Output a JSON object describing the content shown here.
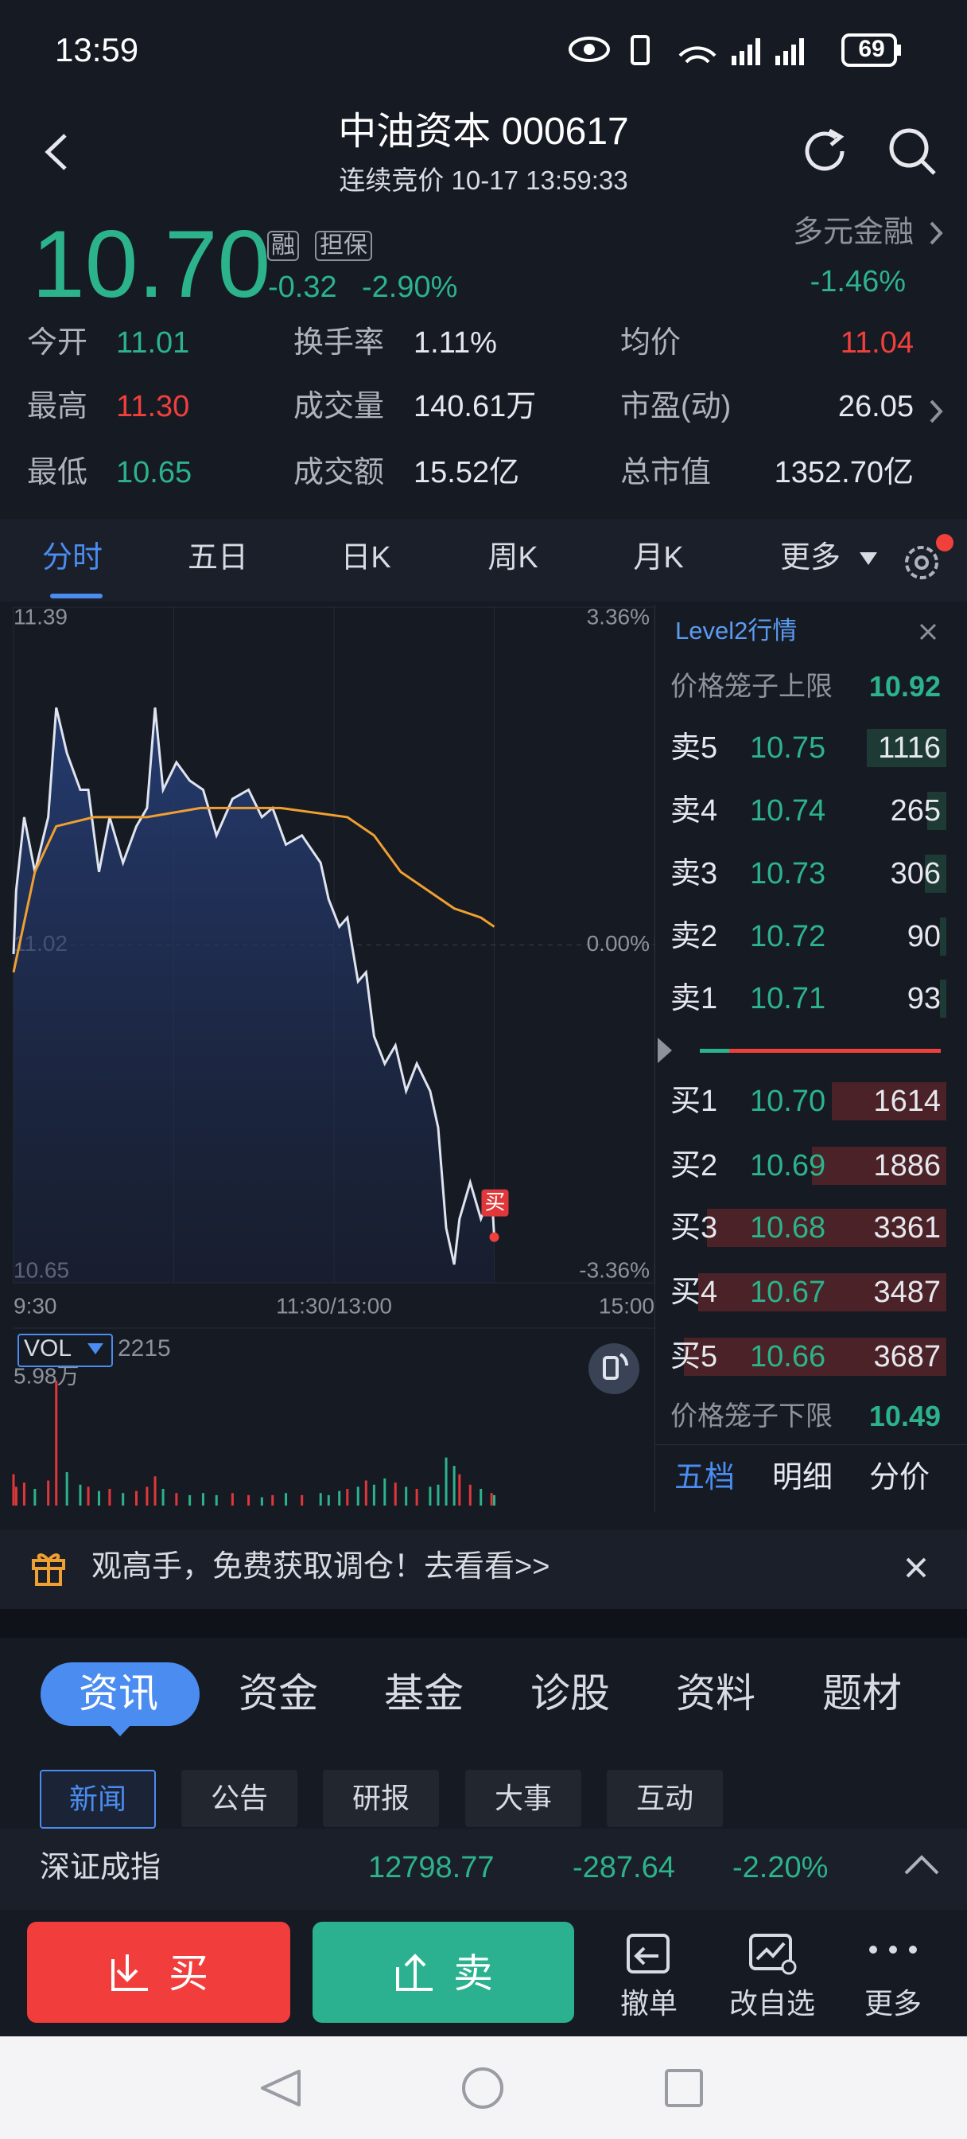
{
  "status_bar": {
    "time": "13:59",
    "battery": "69"
  },
  "header": {
    "title": "中油资本 000617",
    "subtitle": "连续竞价 10-17 13:59:33"
  },
  "quote": {
    "price": "10.70",
    "badges": [
      "融",
      "担保"
    ],
    "change": "-0.32",
    "change_pct": "-2.90%",
    "sector": "多元金融",
    "sector_change": "-1.46%"
  },
  "stats": [
    [
      {
        "label": "今开",
        "value": "11.01"
      },
      {
        "label": "换手率",
        "value": "1.11%"
      },
      {
        "label": "均价",
        "value": "11.04"
      }
    ],
    [
      {
        "label": "最高",
        "value": "11.30"
      },
      {
        "label": "成交量",
        "value": "140.61万"
      },
      {
        "label": "市盈(动)",
        "value": "26.05"
      }
    ],
    [
      {
        "label": "最低",
        "value": "10.65"
      },
      {
        "label": "成交额",
        "value": "15.52亿"
      },
      {
        "label": "总市值",
        "value": "1352.70亿"
      }
    ]
  ],
  "tabs": [
    "分时",
    "五日",
    "日K",
    "周K",
    "月K",
    "更多"
  ],
  "chart": {
    "yticks": [
      11.39,
      11.02,
      10.65
    ],
    "pct_ticks": [
      "3.36%",
      "0.00%",
      "-3.36%"
    ],
    "xlim": [
      0,
      240
    ],
    "xticks": [
      {
        "value": 0,
        "label": "9:30"
      },
      {
        "value": 120,
        "label": "11:30/13:00"
      },
      {
        "value": 240,
        "label": "15:00"
      }
    ],
    "minutes": [
      0,
      1,
      4,
      8,
      13,
      16,
      20,
      25,
      28,
      32,
      36,
      41,
      46,
      50,
      53,
      56,
      61,
      66,
      71,
      76,
      82,
      88,
      93,
      97,
      102,
      108,
      115,
      118,
      122,
      125,
      129,
      132,
      135,
      139,
      143,
      147,
      151,
      156,
      159,
      162,
      165,
      167,
      171,
      175,
      179,
      180
    ],
    "price": [
      11.01,
      11.08,
      11.16,
      11.1,
      11.16,
      11.28,
      11.23,
      11.19,
      11.19,
      11.1,
      11.16,
      11.11,
      11.15,
      11.17,
      11.28,
      11.19,
      11.22,
      11.2,
      11.19,
      11.14,
      11.18,
      11.19,
      11.16,
      11.17,
      11.13,
      11.14,
      11.11,
      11.07,
      11.04,
      11.05,
      10.98,
      10.99,
      10.92,
      10.89,
      10.91,
      10.86,
      10.89,
      10.86,
      10.82,
      10.71,
      10.67,
      10.72,
      10.76,
      10.72,
      10.75,
      10.7
    ],
    "avg_minutes": [
      0,
      8,
      16,
      30,
      50,
      70,
      100,
      125,
      135,
      145,
      155,
      165,
      175,
      180
    ],
    "avg_price": [
      10.99,
      11.1,
      11.15,
      11.16,
      11.16,
      11.17,
      11.17,
      11.16,
      11.14,
      11.1,
      11.08,
      11.06,
      11.05,
      11.04
    ],
    "price_color": "#dfe4ee",
    "avg_color": "#f0a030",
    "vol_label": "VOL",
    "vol_value": "2215",
    "vol_max": {
      "value": 5.98,
      "label": "5.98万"
    },
    "volume": [
      1.5,
      0.9,
      1.1,
      0.8,
      1.2,
      5.98,
      1.6,
      1.0,
      0.9,
      0.7,
      0.8,
      0.6,
      0.7,
      0.9,
      1.4,
      0.8,
      0.6,
      0.5,
      0.6,
      0.5,
      0.6,
      0.5,
      0.4,
      0.5,
      0.6,
      0.5,
      0.6,
      0.5,
      0.7,
      0.8,
      0.9,
      1.2,
      1.0,
      1.3,
      1.1,
      0.9,
      0.8,
      0.9,
      1.0,
      2.3,
      1.9,
      1.5,
      1.0,
      0.8,
      0.6,
      0.5
    ],
    "marker": "买"
  },
  "order_book": {
    "title": "Level2行情",
    "upper": {
      "label": "价格笼子上限",
      "value": "10.92"
    },
    "asks": [
      {
        "label": "卖5",
        "price": "10.75",
        "volume": 1116
      },
      {
        "label": "卖4",
        "price": "10.74",
        "volume": 265
      },
      {
        "label": "卖3",
        "price": "10.73",
        "volume": 306
      },
      {
        "label": "卖2",
        "price": "10.72",
        "volume": 90
      },
      {
        "label": "卖1",
        "price": "10.71",
        "volume": 93
      }
    ],
    "bids": [
      {
        "label": "买1",
        "price": "10.70",
        "volume": 1614
      },
      {
        "label": "买2",
        "price": "10.69",
        "volume": 1886
      },
      {
        "label": "买3",
        "price": "10.68",
        "volume": 3361
      },
      {
        "label": "买4",
        "price": "10.67",
        "volume": 3487
      },
      {
        "label": "买5",
        "price": "10.66",
        "volume": 3687
      }
    ],
    "lower": {
      "label": "价格笼子下限",
      "value": "10.49"
    },
    "tabs": [
      "五档",
      "明细",
      "分价"
    ]
  },
  "banner": {
    "text": "观高手，免费获取调仓！去看看>>"
  },
  "news": {
    "tabs": [
      "资讯",
      "资金",
      "基金",
      "诊股",
      "资料",
      "题材"
    ],
    "sub_tabs": [
      "新闻",
      "公告",
      "研报",
      "大事",
      "互动"
    ]
  },
  "index": {
    "name": "深证成指",
    "value": "12798.77",
    "change": "-287.64",
    "change_pct": "-2.20%"
  },
  "bottom": {
    "buy": "买",
    "sell": "卖",
    "actions": [
      "撤单",
      "改自选",
      "更多"
    ]
  }
}
